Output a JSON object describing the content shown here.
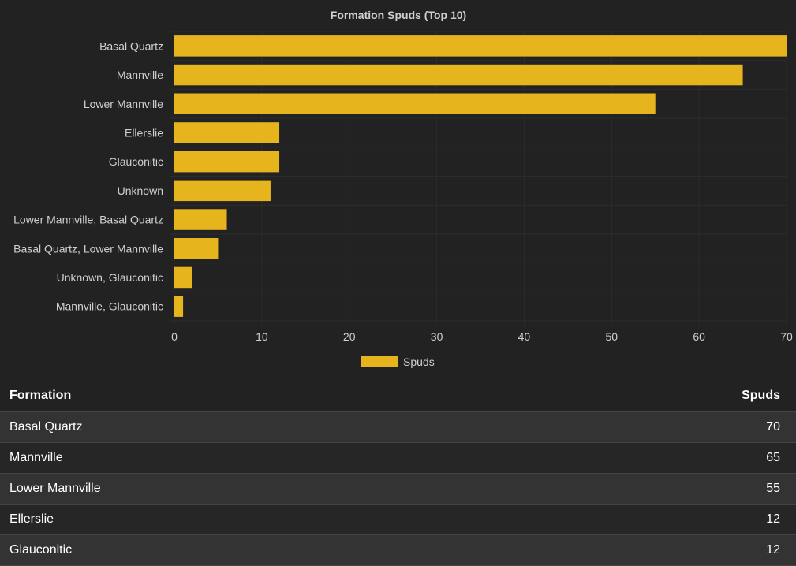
{
  "chart_data": {
    "type": "bar",
    "orientation": "horizontal",
    "title": "Formation Spuds (Top 10)",
    "categories": [
      "Basal Quartz",
      "Mannville",
      "Lower Mannville",
      "Ellerslie",
      "Glauconitic",
      "Unknown",
      "Lower Mannville, Basal Quartz",
      "Basal Quartz, Lower Mannville",
      "Unknown, Glauconitic",
      "Mannville, Glauconitic"
    ],
    "series": [
      {
        "name": "Spuds",
        "color": "#e6b51e",
        "values": [
          70,
          65,
          55,
          12,
          12,
          11,
          6,
          5,
          2,
          1
        ]
      }
    ],
    "xlim": [
      0,
      70
    ],
    "xticks": [
      "0",
      "10",
      "20",
      "30",
      "40",
      "50",
      "60",
      "70"
    ],
    "grid": true,
    "legend_position": "bottom"
  },
  "table": {
    "headers": {
      "formation": "Formation",
      "spuds": "Spuds"
    },
    "rows": [
      {
        "formation": "Basal Quartz",
        "spuds": "70"
      },
      {
        "formation": "Mannville",
        "spuds": "65"
      },
      {
        "formation": "Lower Mannville",
        "spuds": "55"
      },
      {
        "formation": "Ellerslie",
        "spuds": "12"
      },
      {
        "formation": "Glauconitic",
        "spuds": "12"
      }
    ]
  },
  "colors": {
    "background": "#222222",
    "bar": "#e6b51e",
    "row_odd": "#333333",
    "row_even": "#262626"
  }
}
